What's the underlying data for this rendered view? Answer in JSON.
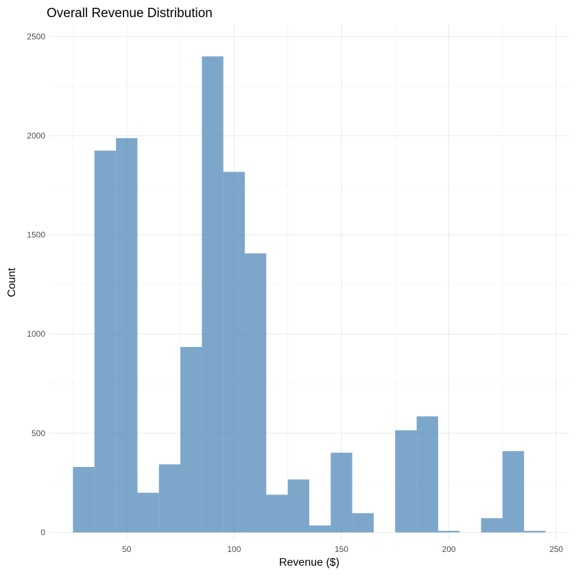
{
  "chart_data": {
    "type": "bar",
    "title": "Overall Revenue Distribution",
    "xlabel": "Revenue ($)",
    "ylabel": "Count",
    "xlim": [
      14,
      256
    ],
    "ylim": [
      -40,
      2560
    ],
    "x_ticks": [
      50,
      100,
      150,
      200,
      250
    ],
    "x_tick_labels": [
      "50",
      "100",
      "150",
      "200",
      "250"
    ],
    "y_ticks": [
      0,
      500,
      1000,
      1500,
      2000,
      2500
    ],
    "y_tick_labels": [
      "0",
      "500",
      "1000",
      "1500",
      "2000",
      "2500"
    ],
    "grid": true,
    "fill_color": "#4682B4",
    "bins": [
      {
        "x0": 25,
        "x1": 35,
        "count": 330
      },
      {
        "x0": 35,
        "x1": 45,
        "count": 1925
      },
      {
        "x0": 45,
        "x1": 55,
        "count": 1988
      },
      {
        "x0": 55,
        "x1": 65,
        "count": 200
      },
      {
        "x0": 65,
        "x1": 75,
        "count": 343
      },
      {
        "x0": 75,
        "x1": 85,
        "count": 935
      },
      {
        "x0": 85,
        "x1": 95,
        "count": 2400
      },
      {
        "x0": 95,
        "x1": 105,
        "count": 1818
      },
      {
        "x0": 105,
        "x1": 115,
        "count": 1407
      },
      {
        "x0": 115,
        "x1": 125,
        "count": 190
      },
      {
        "x0": 125,
        "x1": 135,
        "count": 267
      },
      {
        "x0": 135,
        "x1": 145,
        "count": 35
      },
      {
        "x0": 145,
        "x1": 155,
        "count": 402
      },
      {
        "x0": 155,
        "x1": 165,
        "count": 97
      },
      {
        "x0": 165,
        "x1": 175,
        "count": 0
      },
      {
        "x0": 175,
        "x1": 185,
        "count": 515
      },
      {
        "x0": 185,
        "x1": 195,
        "count": 585
      },
      {
        "x0": 195,
        "x1": 205,
        "count": 8
      },
      {
        "x0": 205,
        "x1": 215,
        "count": 0
      },
      {
        "x0": 215,
        "x1": 225,
        "count": 72
      },
      {
        "x0": 225,
        "x1": 235,
        "count": 410
      },
      {
        "x0": 235,
        "x1": 245,
        "count": 8
      }
    ]
  }
}
